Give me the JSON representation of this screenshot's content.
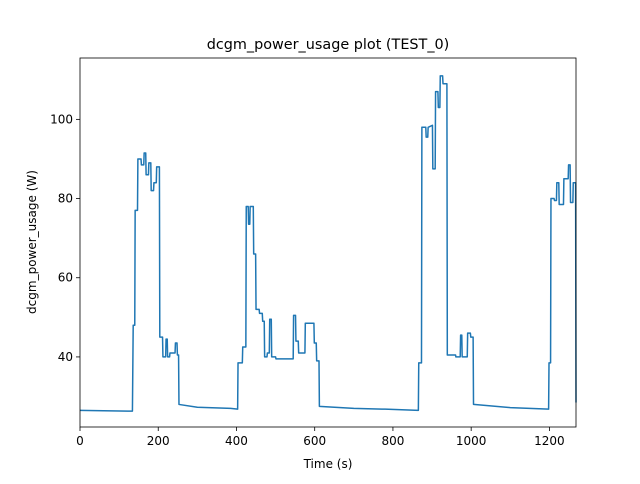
{
  "chart_data": {
    "type": "line",
    "title": "dcgm_power_usage plot (TEST_0)",
    "x_label": "Time (s)",
    "y_label": "dcgm_power_usage (W)",
    "xlim": [
      0,
      1268
    ],
    "ylim": [
      22.3,
      115.5
    ],
    "xticks": [
      0,
      200,
      400,
      600,
      800,
      1000,
      1200
    ],
    "yticks": [
      40,
      60,
      80,
      100
    ],
    "grid": false,
    "series": [
      {
        "name": "dcgm_power_usage",
        "color": "#1f77b4",
        "x": [
          0,
          60,
          134,
          136,
          140,
          141,
          147,
          148,
          156,
          157,
          163,
          164,
          168,
          169,
          175,
          176,
          181,
          182,
          188,
          189,
          195,
          196,
          203,
          204,
          211,
          212,
          219,
          220,
          223,
          224,
          229,
          230,
          243,
          244,
          248,
          249,
          252,
          253,
          300,
          385,
          403,
          404,
          415,
          416,
          424,
          425,
          430,
          431,
          434,
          435,
          443,
          444,
          449,
          450,
          458,
          459,
          466,
          467,
          471,
          472,
          478,
          479,
          484,
          485,
          489,
          490,
          500,
          501,
          545,
          546,
          551,
          552,
          558,
          559,
          575,
          576,
          598,
          599,
          604,
          605,
          611,
          612,
          700,
          780,
          865,
          866,
          873,
          874,
          884,
          885,
          889,
          890,
          901,
          902,
          908,
          909,
          915,
          916,
          920,
          921,
          927,
          928,
          938,
          939,
          960,
          961,
          972,
          973,
          976,
          977,
          990,
          991,
          998,
          999,
          1005,
          1006,
          1100,
          1198,
          1199,
          1203,
          1204,
          1212,
          1213,
          1218,
          1219,
          1224,
          1225,
          1236,
          1237,
          1248,
          1249,
          1253,
          1254,
          1260,
          1261,
          1267,
          1268
        ],
        "values": [
          26.5,
          26.4,
          26.3,
          48,
          48,
          77,
          77,
          90,
          90,
          88.5,
          88.5,
          91.5,
          91.5,
          86,
          86,
          89,
          89,
          82,
          82,
          84,
          84,
          88,
          88,
          45,
          45,
          40,
          40,
          44.5,
          44.5,
          40,
          40,
          41,
          41,
          43.5,
          43.5,
          40.5,
          40.5,
          28,
          27.3,
          27,
          26.8,
          38.5,
          38.5,
          42.5,
          42.5,
          78,
          78,
          73.5,
          73.5,
          78,
          78,
          66,
          66,
          52,
          52,
          51,
          51,
          49,
          49,
          40,
          40,
          41,
          41,
          49.5,
          49.5,
          40,
          40,
          39.5,
          39.5,
          50.5,
          50.5,
          44,
          44,
          41,
          41,
          48.5,
          48.5,
          43.5,
          43.5,
          39,
          39,
          27.5,
          27,
          26.8,
          26.5,
          38.5,
          38.5,
          98,
          98,
          95.5,
          95.5,
          98,
          98.5,
          87.5,
          87.5,
          107,
          107,
          103,
          103,
          111,
          111,
          109,
          109,
          40.5,
          40.5,
          40,
          40,
          45.5,
          45.5,
          40,
          40,
          46,
          46,
          45,
          45,
          28,
          27.2,
          26.8,
          38.5,
          38.5,
          80,
          80,
          79.5,
          79.5,
          84,
          84,
          78.5,
          78.5,
          85,
          85,
          88.5,
          88.5,
          79,
          79,
          84,
          84,
          28.5
        ]
      }
    ]
  }
}
